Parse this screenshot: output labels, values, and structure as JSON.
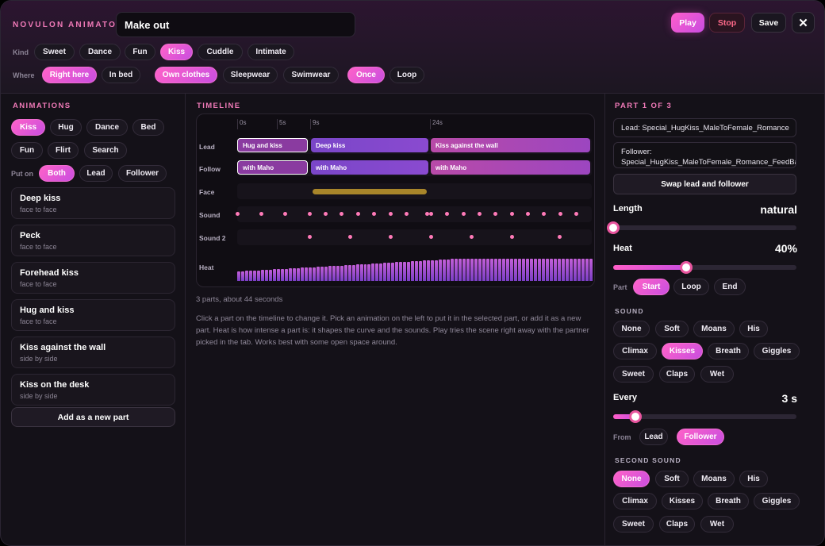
{
  "header": {
    "brand": "NOVULON ANIMATOR",
    "title_value": "Make out",
    "play_label": "Play",
    "stop_label": "Stop",
    "save_label": "Save",
    "close_glyph": "✕"
  },
  "kind": {
    "label": "Kind",
    "options": [
      "Sweet",
      "Dance",
      "Fun",
      "Kiss",
      "Cuddle",
      "Intimate"
    ],
    "selected": "Kiss"
  },
  "where": {
    "label": "Where",
    "places": [
      "Right here",
      "In bed"
    ],
    "clothes": [
      "Own clothes",
      "Sleepwear",
      "Swimwear"
    ],
    "repeat": [
      "Once",
      "Loop"
    ],
    "selected": [
      "Right here",
      "Own clothes",
      "Once"
    ]
  },
  "animations": {
    "title": "ANIMATIONS",
    "filters": [
      "Kiss",
      "Hug",
      "Dance",
      "Bed",
      "Fun",
      "Flirt",
      "Search"
    ],
    "selected_filter": "Kiss",
    "put_on_label": "Put on",
    "put_on": [
      "Both",
      "Lead",
      "Follower"
    ],
    "selected_put_on": "Both",
    "items": [
      {
        "title": "Deep kiss",
        "sub": "face to face"
      },
      {
        "title": "Peck",
        "sub": "face to face"
      },
      {
        "title": "Forehead kiss",
        "sub": "face to face"
      },
      {
        "title": "Hug and kiss",
        "sub": "face to face"
      },
      {
        "title": "Kiss against the wall",
        "sub": "side by side"
      },
      {
        "title": "Kiss on the desk",
        "sub": "side by side"
      }
    ],
    "add_label": "Add as a new part"
  },
  "timeline": {
    "title": "TIMELINE",
    "ticks": [
      "0s",
      "5s",
      "9s",
      "24s"
    ],
    "rows": [
      "Lead",
      "Follow",
      "Face",
      "Sound",
      "Sound 2",
      "Heat"
    ],
    "lead_parts": [
      "Hug and kiss",
      "Deep kiss",
      "Kiss against the wall"
    ],
    "follow_parts": [
      "with Maho",
      "with Maho",
      "with Maho"
    ],
    "summary": "3 parts, about 44 seconds",
    "help": "Click a part on the timeline to change it. Pick an animation on the left to put it in the selected part, or add it as a new part. Heat is how intense a part is: it shapes the curve and the sounds. Play tries the scene right away with the partner picked in the tab. Works best with some open space around."
  },
  "part": {
    "title": "PART 1 OF 3",
    "lead_field": "Lead: Special_HugKiss_MaleToFemale_Romance",
    "follower_field": "Follower: Special_HugKiss_MaleToFemale_Romance_FeedBack",
    "swap_label": "Swap lead and follower",
    "length_label": "Length",
    "length_value": "natural",
    "length_fraction": 0.0,
    "heat_label": "Heat",
    "heat_value": "40%",
    "heat_fraction": 0.4,
    "part_label": "Part",
    "part_options": [
      "Start",
      "Loop",
      "End"
    ],
    "part_selected": "Start",
    "sound_title": "SOUND",
    "sounds": [
      "None",
      "Soft",
      "Moans",
      "His",
      "Climax",
      "Kisses",
      "Breath",
      "Giggles",
      "Sweet",
      "Claps",
      "Wet"
    ],
    "sound_selected": "Kisses",
    "every_label": "Every",
    "every_value": "3 s",
    "every_fraction": 0.12,
    "from_label": "From",
    "from_options": [
      "Lead",
      "Follower"
    ],
    "from_selected": "Follower",
    "second_sound_title": "SECOND SOUND",
    "second_selected": "None"
  },
  "colors": {
    "accent": "#f07ab8",
    "chip_on": "#e85ad0",
    "bg": "#141118"
  }
}
